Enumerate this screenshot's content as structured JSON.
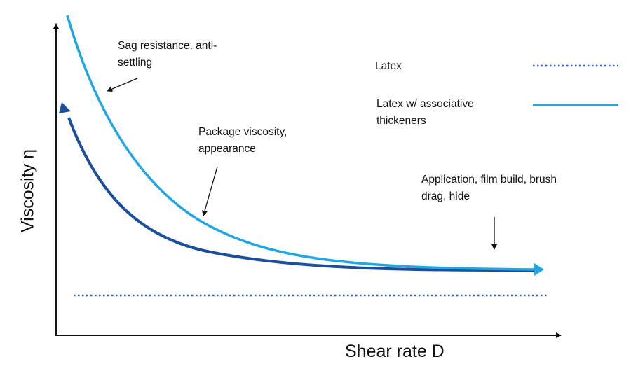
{
  "chart_data": {
    "type": "line",
    "title": "",
    "xlabel": "Shear rate D",
    "ylabel": "Viscosity η",
    "legend": {
      "placement": "top-right",
      "entries": [
        {
          "label": "Latex",
          "style": "dotted",
          "color": "#2f5fc0"
        },
        {
          "label_line1": "Latex w/ associative",
          "label_line2": "thickeners",
          "style": "solid",
          "color": "#1ea7e6"
        }
      ]
    },
    "series": [
      {
        "name": "Latex",
        "shape": "constant low viscosity",
        "color": "#2f5fc0"
      },
      {
        "name": "Latex w/ associative thickeners",
        "shape": "shear-thinning, higher low-shear viscosity",
        "color": "#1ea7e6"
      },
      {
        "name": "Latex w/ associative thickeners (alternate)",
        "shape": "shear-thinning",
        "color": "#1b4f9c"
      }
    ],
    "annotations": [
      {
        "line1": "Sag resistance,   anti-",
        "line2": "settling"
      },
      {
        "line1": "Package viscosity,",
        "line2": "appearance"
      },
      {
        "line1": "Application, film build, brush",
        "line2": "drag, hide"
      }
    ]
  }
}
